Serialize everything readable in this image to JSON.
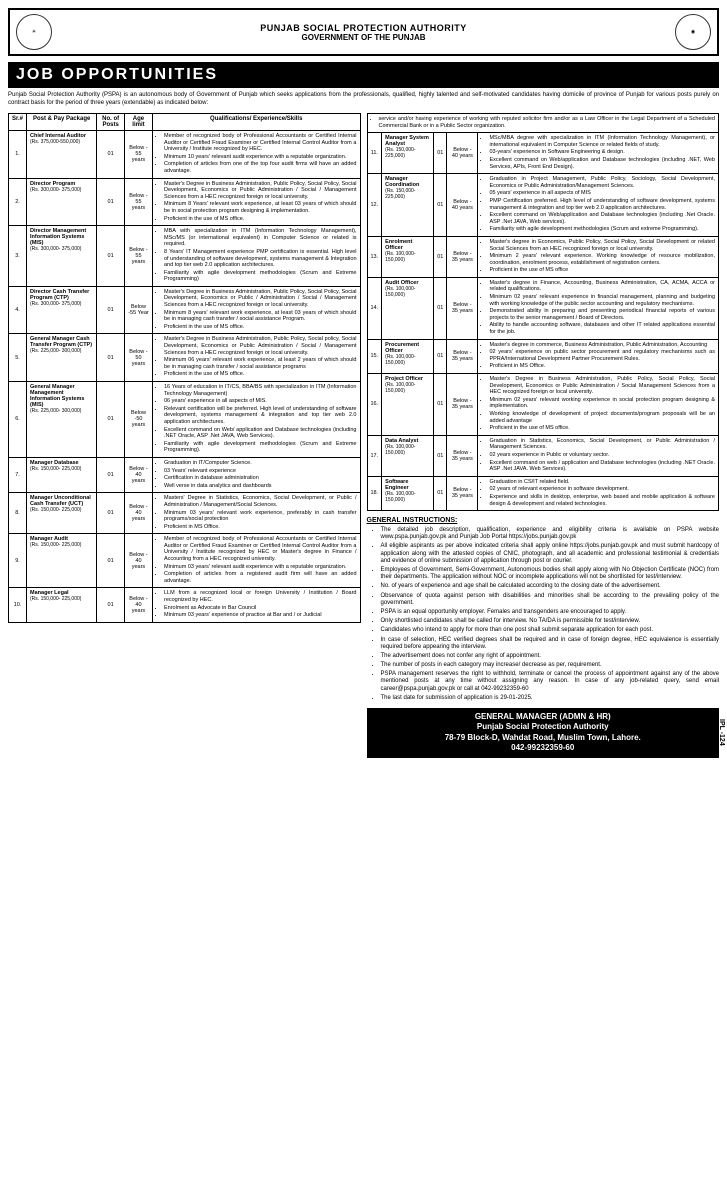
{
  "header": {
    "org": "PUNJAB SOCIAL PROTECTION AUTHORITY",
    "gov": "GOVERNMENT OF THE PUNJAB",
    "title": "JOB OPPORTUNITIES",
    "intro": "Punjab Social Protection Authority (PSPA) is an autonomous body of Government of Punjab which seeks applications from the professionals, qualified, highly talented and self-motivated candidates having domicile of province of Punjab for various posts purely on contract basis for the period of three years (extendable) as indicated below:"
  },
  "th": {
    "sr": "Sr.#",
    "post": "Post & Pay Package",
    "num": "No. of Posts",
    "age": "Age limit",
    "qual": "Qualifications/ Experience/Skills"
  },
  "left": [
    {
      "sr": "1.",
      "title": "Chief Internal Auditor",
      "pay": "(Rs. 375,000-550,000)",
      "num": "01",
      "age": "Below - 55 years",
      "q": [
        "Member of recognized body of Professional Accountants or Certified Internal Auditor or Certified Fraud Examiner or Certified Internal Control Auditor from a University / Institute recognized by HEC.",
        "Minimum 10 years' relevant audit experience with a reputable organization.",
        "Completion of articles from one of the top four audit firms will have an added advantage."
      ]
    },
    {
      "sr": "2.",
      "title": "Director Program",
      "pay": "(Rs. 300,000- 375,000)",
      "num": "01",
      "age": "Below - 55 years",
      "q": [
        "Master's Degree in Business Administration, Public Policy, Social Policy, Social Development, Economics or Public Administration / Social / Management Sciences from a HEC recognized foreign or local university.",
        "Minimum 8 Years' relevant work experience, at least 03 years of which should be in social protection program designing & implementation.",
        "Proficient in the use of MS office."
      ]
    },
    {
      "sr": "3.",
      "title": "Director Management Information Systems (MIS)",
      "pay": "(Rs. 300,000- 375,000)",
      "num": "01",
      "age": "Below - 55 years",
      "q": [
        "MBA with specialization in ITM (Information Technology Management), MSc/MS (or international equivalent) in Computer Science or related is required.",
        "8 Years' IT Management experience PMP certification is essential. High level of understanding of software development, systems management & Integration and top tier web 2.0 application architectures.",
        "Familiarity with agile development methodologies (Scrum and Extreme Programming)"
      ]
    },
    {
      "sr": "4.",
      "title": "Director Cash Transfer Program (CTP)",
      "pay": "(Rs. 300,000- 375,000)",
      "num": "01",
      "age": "Below -55 Year",
      "q": [
        "Master's Degree in Business Administration, Public Policy, Social Policy, Social Development, Economics or Public / Administration / Social / Management Sciences from a HEC recognized foreign or local university.",
        "Minimum 8 years' relevant work experience, at least 03 years of which should be in managing cash transfer / social assistance Program.",
        "Proficient in the use of MS office."
      ]
    },
    {
      "sr": "5.",
      "title": "General Manager Cash Transfer Program (CTP)",
      "pay": "(Rs. 225,000- 300,000)",
      "num": "01",
      "age": "Below - 50 years",
      "q": [
        "Master's Degree in Business Administration, Public Policy, Social policy, Social Development, Economics or Public Administration / Social / Management Sciences from a HEC recognized foreign or local university.",
        "Minimum 06 years' relevant work experience, at least 2 years of which should be in managing cash transfer / social assistance programs",
        "Proficient in the use of MS office."
      ]
    },
    {
      "sr": "6.",
      "title": "General Manager Management Information Systems (MIS)",
      "pay": "(Rs. 225,000- 300,000)",
      "num": "01",
      "age": "Below -50 years",
      "q": [
        "16 Years of education in IT/CS, BBA/BS with specialization in ITM (Information Technology Management)",
        "06 years' experience in all aspects of MIS.",
        "Relevant certification will be preferred. High level of understanding of software development, systems management & integration and top tier web 2.0 application architectures.",
        "Excellent command on Web/ application and Database technologies (including .NET Oracle, ASP .Net JAVA, Web Services).",
        "Familiarity with agile development methodologies (Scrum and Extreme Programming)."
      ]
    },
    {
      "sr": "7.",
      "title": "Manager Database",
      "pay": "(Rs. 150,000- 225,000)",
      "num": "01",
      "age": "Below - 40 years",
      "q": [
        "Graduation in IT/Computer Science.",
        "03 Years' relevant experience",
        "Certification in database administration",
        "Well verse in data analytics and dashboards"
      ]
    },
    {
      "sr": "8.",
      "title": "Manager Unconditional Cash Transfer (UCT)",
      "pay": "(Rs. 150,000- 225,000)",
      "num": "01",
      "age": "Below - 40 years",
      "q": [
        "Masters' Degree in Statistics, Economics, Social Development, or Public / Administration / Management/Social Sciences.",
        "Minimum 03 years' relevant work experience, preferably in cash transfer programs/social protection",
        "Proficient in MS Office."
      ]
    },
    {
      "sr": "9.",
      "title": "Manager Audit",
      "pay": "(Rs. 150,000- 225,000)",
      "num": "01",
      "age": "Below - 40 years",
      "q": [
        "Member of recognized body of Professional Accountants or Certified Internal Auditor or Certified Fraud Examiner or Certified Internal Control Auditor from a University / Institute recognized by HEC or Master's degree in Finance / Accounting from a HEC recognized university.",
        "Minimum 03 years' relevant audit experience with a reputable organization.",
        "Completion of articles from a registered audit firm will have an added advantage."
      ]
    },
    {
      "sr": "10.",
      "title": "Manager Legal",
      "pay": "(Rs. 150,000- 225,000)",
      "num": "01",
      "age": "Below - 40 years",
      "q": [
        "LLM from a recognized local or foreign University / Institution / Board recognized by HEC.",
        "Enrolment as Advocate in Bar Council",
        "Minimum 03 years' experience of practice at Bar and / or Judicial"
      ]
    }
  ],
  "rightTop": [
    "service and/or having experience of working with reputed solicitor firm and/or as a Law Officer in the Legal Department of a Scheduled Commercial Bank or in a Public Sector organization."
  ],
  "right": [
    {
      "sr": "11.",
      "title": "Manager System Analyst",
      "pay": "(Rs. 150,000- 225,000)",
      "num": "01",
      "age": "Below - 40 years",
      "q": [
        "MSc/MBA degree with specialization in ITM (Information Technology Management), or international equivalent in Computer Science or related fields of study.",
        "03-years' experience in Software Engineering & design.",
        "Excellent command on Web/application and Database technologies (including .NET, Web Services, APIs, Front End Design)."
      ]
    },
    {
      "sr": "12.",
      "title": "Manager Coordination",
      "pay": "(Rs. 150,000- 225,000)",
      "num": "01",
      "age": "Below - 40 years",
      "q": [
        "Graduation in Project Management, Public Policy, Sociology, Social Development, Economics or Public Administration/Management Sciences.",
        "05 years' experience in all aspects of MIS",
        "PMP Certification preferred. High level of understanding of software development, systems management & integration and top tier web 2.0 application architectures.",
        "Excellent command on Web/application and Database technologies (including .Net Oracle. ASP .Net JAVA, Web services).",
        "Familiarity with agile development methodologies (Scrum and extreme Programming)."
      ]
    },
    {
      "sr": "13.",
      "title": "Enrolment Officer",
      "pay": "(Rs. 100,000-150,000)",
      "num": "01",
      "age": "Below - 35 years",
      "q": [
        "Master's degree in Economics, Public Policy, Social Policy, Social Development or related Social Sciences from an HEC recognized foreign or local university.",
        "Minimum 2 years' relevant experience. Working knowledge of resource mobilization, coordination, enrolment process, establishment of registration centers.",
        "Proficient in the use of MS office"
      ]
    },
    {
      "sr": "14.",
      "title": "Audit Officer",
      "pay": "(Rs. 100,000-150,000)",
      "num": "01",
      "age": "Below - 35 years",
      "q": [
        "Master's degree in Finance, Accounting, Business Administration, CA, ACMA, ACCA or related qualifications.",
        "Minimum 02 years' relevant experience in financial management, planning and budgeting with working knowledge of the public sector accounting and regulatory mechanisms.",
        "Demonstrated ability in preparing and presenting periodical financial reports of various projects to the senior management / Board of Directors.",
        "Ability to handle accounting software, databases and other IT related applications essential for the job."
      ]
    },
    {
      "sr": "15.",
      "title": "Procurement Officer",
      "pay": "(Rs. 100,000-150,000)",
      "num": "01",
      "age": "Below - 35 years",
      "q": [
        "Master's degree in commerce, Business Administration, Public Administration, Accounting",
        "02 years' experience on public sector procurement and regulatory mechanisms such as PPRA/International Development Partner Procurement Rules.",
        "Proficient in MS Office."
      ]
    },
    {
      "sr": "16.",
      "title": "Project Officer",
      "pay": "(Rs. 100,000-150,000)",
      "num": "01",
      "age": "Below - 35 years",
      "q": [
        "Master's Degree in Business Administration, Public Policy, Social Policy, Social Development, Economics or Public Administration / Social Management Sciences from a HEC recognized foreign or local university.",
        "Minimum 02 years' relevant working experience in social protection program designing & implementation.",
        "Working knowledge of development of project documents/program proposals will be an added advantage",
        "Proficient in the use of MS office."
      ]
    },
    {
      "sr": "17.",
      "title": "Data Analyst",
      "pay": "(Rs. 100,000-150,000)",
      "num": "01",
      "age": "Below - 35 years",
      "q": [
        "Graduation in Statistics, Economics, Social Development, or Public Administration / Management Sciences.",
        "02 years experience in Public or voluntary sector.",
        "Excellent command on web / application and Database technologies (including .NET Oracle. ASP .Net JAVA. Web Services)."
      ]
    },
    {
      "sr": "18.",
      "title": "Software Engineer",
      "pay": "(Rs. 100,000-150,000)",
      "num": "01",
      "age": "Below - 35 years",
      "q": [
        "Graduation in CS/IT related field.",
        "02 years of relevant experience in software development.",
        "Experience and skills in desktop, enterprise, web based and mobile application & software design & development and related technologies."
      ]
    }
  ],
  "instrHead": "GENERAL INSTRUCTIONS:",
  "instr": [
    "The detailed job description, qualification, experience and eligibility criteria is available on PSPA website www.pspa.punjab.gov.pk and Punjab Job Portal https://jobs.punjab.gov.pk",
    "All eligible aspirants as per above indicated criteria shall apply online https://jobs.punjab.gov.pk and must submit hardcopy of application along with the attested copies of CNIC, photograph, and all academic and professional testimonial & credentials and evidence of online submission of application through post or courier.",
    "Employees of Government, Semi-Government, Autonomous bodies shall apply along with No Objection Certificate (NOC) from their departments. The application without NOC or incomplete applications will not be shortlisted for test/interview.",
    "No. of years of experience and age shall be calculated according to the closing date of the advertisement.",
    "Observance of quota against person with disabilities and minorities shall be according to the prevailing policy of the government.",
    "PSPA is an equal opportunity employer. Females and transgenders are encouraged to apply.",
    "Only shortlisted candidates shall be called for interview. No TA/DA is permissible for test/interview.",
    "Candidates who intend to apply for more than one post shall submit separate application for each post.",
    "In case of selection, HEC verified degrees shall be required and in case of foreign degree, HEC equivalence is essentially required before appearing the interview.",
    "The advertisement does not confer any right of appointment.",
    "The number of posts in each category may increase/ decrease as per, requirement.",
    "PSPA management reserves the right to withhold, terminate or cancel the process of appointment against any of the above mentioned posts at any time without assigning any reason. In case of any job-related query, send email career@pspa.punjab.gov.pk or call at 042-99232359-60",
    "The last date for submission of application is 29-01-2025."
  ],
  "footer": {
    "l1": "GENERAL MANAGER (ADMN & HR)",
    "l2": "Punjab Social Protection Authority",
    "l3": "78-79 Block-D, Wahdat Road, Muslim Town, Lahore.",
    "l4": "042-99232359-60"
  },
  "ipl": "IPL -124"
}
